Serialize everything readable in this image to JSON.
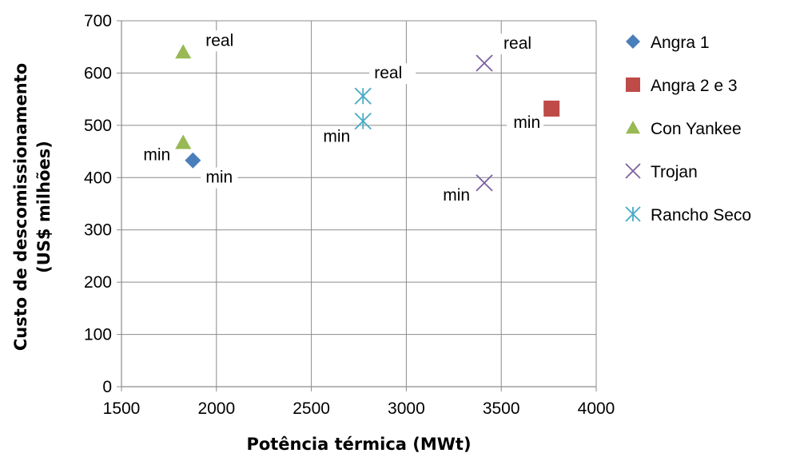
{
  "chart_data": {
    "type": "scatter",
    "xlabel": "Potência térmica (MWt)",
    "ylabel_line1": "Custo de descomissionamento",
    "ylabel_line2": "(US$ milhões)",
    "xlim": [
      1500,
      4000
    ],
    "ylim": [
      0,
      700
    ],
    "xticks": [
      1500,
      2000,
      2500,
      3000,
      3500,
      4000
    ],
    "yticks": [
      0,
      100,
      200,
      300,
      400,
      500,
      600,
      700
    ],
    "grid": true,
    "legend_position": "right",
    "series": [
      {
        "name": "Angra 1",
        "marker": "diamond",
        "color": "#4a7ebb",
        "points": [
          {
            "x": 1876,
            "y": 433,
            "label": "min"
          }
        ]
      },
      {
        "name": "Angra 2 e 3",
        "marker": "square",
        "color": "#be4b48",
        "points": [
          {
            "x": 3765,
            "y": 532,
            "label": "min"
          }
        ]
      },
      {
        "name": "Con Yankee",
        "marker": "triangle",
        "color": "#98b954",
        "points": [
          {
            "x": 1825,
            "y": 640,
            "label": "real"
          },
          {
            "x": 1825,
            "y": 467,
            "label": "min"
          }
        ]
      },
      {
        "name": "Trojan",
        "marker": "x",
        "color": "#7d60a0",
        "points": [
          {
            "x": 3411,
            "y": 619,
            "label": "real"
          },
          {
            "x": 3411,
            "y": 390,
            "label": "min"
          }
        ]
      },
      {
        "name": "Rancho Seco",
        "marker": "star",
        "color": "#46aac5",
        "points": [
          {
            "x": 2772,
            "y": 556,
            "label": "real"
          },
          {
            "x": 2772,
            "y": 508,
            "label": "min"
          }
        ]
      }
    ]
  }
}
